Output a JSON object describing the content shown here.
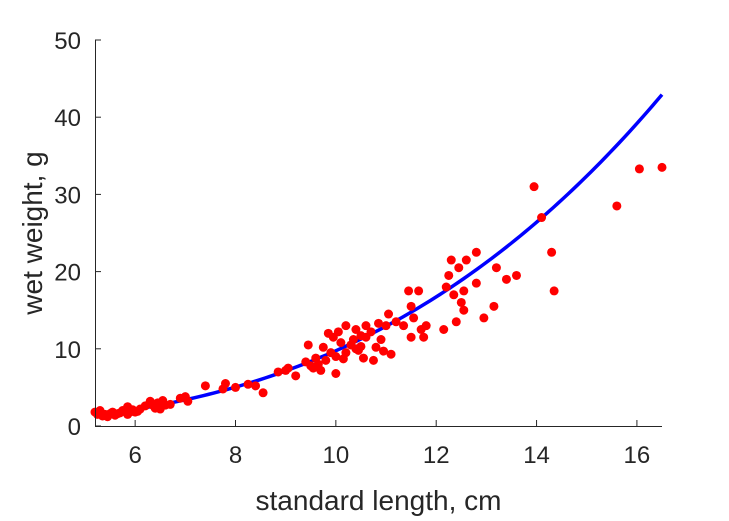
{
  "chart_data": {
    "type": "scatter",
    "xlabel": "standard length, cm",
    "ylabel": "wet weight, g",
    "xlim": [
      5.2,
      16.5
    ],
    "ylim": [
      0,
      50
    ],
    "xticks": [
      6,
      8,
      10,
      12,
      14,
      16
    ],
    "yticks": [
      0,
      10,
      20,
      30,
      40,
      50
    ],
    "grid": false,
    "box": false,
    "colors": {
      "points": "#ff0000",
      "fit": "#0000ff",
      "axis": "#262626"
    },
    "series": [
      {
        "kind": "points",
        "x": [
          5.2,
          5.25,
          5.3,
          5.35,
          5.4,
          5.45,
          5.5,
          5.55,
          5.6,
          5.65,
          5.7,
          5.75,
          5.8,
          5.85,
          5.85,
          5.9,
          5.95,
          6.0,
          6.05,
          6.1,
          6.2,
          6.3,
          6.35,
          6.4,
          6.45,
          6.5,
          6.5,
          6.55,
          6.6,
          6.7,
          6.9,
          7.0,
          7.05,
          7.4,
          7.75,
          7.8,
          8.0,
          8.25,
          8.4,
          8.55,
          8.85,
          9.0,
          9.05,
          9.2,
          9.4,
          9.45,
          9.5,
          9.55,
          9.6,
          9.65,
          9.7,
          9.75,
          9.8,
          9.85,
          9.9,
          9.95,
          10.0,
          10.0,
          10.05,
          10.1,
          10.15,
          10.2,
          10.2,
          10.3,
          10.35,
          10.4,
          10.4,
          10.45,
          10.5,
          10.5,
          10.55,
          10.6,
          10.6,
          10.7,
          10.75,
          10.8,
          10.85,
          10.9,
          10.95,
          11.0,
          11.05,
          11.1,
          11.2,
          11.35,
          11.45,
          11.5,
          11.5,
          11.55,
          11.65,
          11.7,
          11.75,
          11.8,
          12.15,
          12.2,
          12.25,
          12.3,
          12.35,
          12.4,
          12.45,
          12.5,
          12.55,
          12.55,
          12.6,
          12.8,
          12.8,
          12.95,
          13.15,
          13.2,
          13.4,
          13.6,
          13.95,
          14.1,
          14.3,
          14.35,
          15.6,
          16.05,
          16.5
        ],
        "y": [
          1.8,
          1.5,
          2.0,
          1.3,
          1.5,
          1.2,
          1.6,
          1.8,
          1.4,
          1.6,
          1.7,
          2.0,
          1.9,
          2.5,
          1.5,
          1.8,
          2.1,
          1.8,
          1.9,
          2.2,
          2.6,
          3.2,
          2.7,
          2.3,
          3.0,
          2.5,
          2.2,
          3.3,
          2.7,
          2.8,
          3.6,
          3.8,
          3.2,
          5.2,
          4.8,
          5.5,
          5.0,
          5.4,
          5.2,
          4.3,
          7.0,
          7.2,
          7.5,
          6.5,
          8.3,
          10.5,
          7.8,
          7.5,
          8.8,
          8.0,
          7.2,
          10.2,
          8.5,
          12.0,
          9.5,
          11.5,
          6.8,
          9.0,
          12.2,
          10.8,
          8.7,
          9.5,
          13.0,
          10.5,
          11.2,
          10.0,
          12.5,
          9.8,
          11.7,
          10.3,
          8.8,
          11.5,
          13.0,
          12.2,
          8.5,
          10.2,
          13.3,
          11.2,
          9.7,
          13.0,
          14.5,
          9.3,
          13.5,
          13.0,
          17.5,
          15.5,
          11.5,
          14.0,
          17.5,
          12.5,
          11.5,
          13.0,
          12.5,
          18.0,
          19.5,
          21.5,
          17.0,
          13.5,
          20.5,
          16.0,
          17.5,
          15.0,
          21.5,
          18.5,
          22.5,
          14.0,
          15.5,
          20.5,
          19.0,
          19.5,
          31.0,
          27.0,
          22.5,
          17.5,
          28.5,
          33.3,
          33.5
        ]
      },
      {
        "kind": "fit-curve",
        "coef": 0.01069,
        "exp": 2.96,
        "x_range": [
          5.2,
          16.5
        ]
      }
    ]
  }
}
